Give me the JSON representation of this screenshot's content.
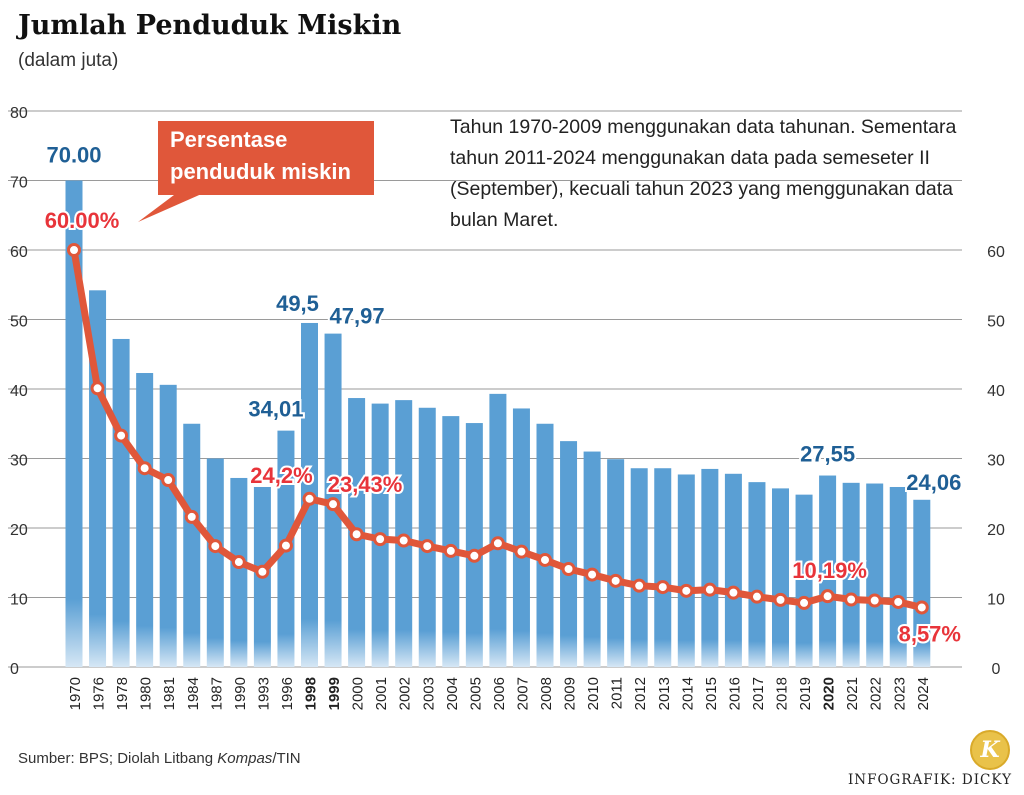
{
  "header": {
    "title": "Jumlah Penduduk Miskin",
    "subtitle": "(dalam juta)"
  },
  "note": "Tahun 1970-2009 menggunakan data tahunan. Sementara tahun 2011-2024 menggunakan data pada semeseter II (September), kecuali tahun 2023 yang menggunakan data bulan Maret.",
  "callout_label": [
    "Persentase",
    "penduduk miskin"
  ],
  "footer": {
    "source_prefix": "Sumber: BPS; Diolah Litbang ",
    "source_italic": "Kompas",
    "source_suffix": "/TIN",
    "credit": "INFOGRAFIK: DICKY",
    "logo_letter": "K"
  },
  "colors": {
    "bar": "#5a9fd4",
    "line": "#e0573a",
    "bar_label": "#1f5f95",
    "line_label": "#e8343a",
    "callout_bg": "#e0573a",
    "grid": "#9a9a9a"
  },
  "chart_data": {
    "type": "bar+line",
    "categories": [
      "1970",
      "1976",
      "1978",
      "1980",
      "1981",
      "1984",
      "1987",
      "1990",
      "1993",
      "1996",
      "1998",
      "1999",
      "2000",
      "2001",
      "2002",
      "2003",
      "2004",
      "2005",
      "2006",
      "2007",
      "2008",
      "2009",
      "2010",
      "2011",
      "2012",
      "2013",
      "2014",
      "2015",
      "2016",
      "2017",
      "2018",
      "2019",
      "2020",
      "2021",
      "2022",
      "2023",
      "2024"
    ],
    "bold_categories": [
      "1998",
      "1999",
      "2020"
    ],
    "series": [
      {
        "axis": "left",
        "type": "bar",
        "values": [
          70.0,
          54.2,
          47.2,
          42.3,
          40.6,
          35.0,
          30.0,
          27.2,
          25.9,
          34.01,
          49.5,
          47.97,
          38.7,
          37.9,
          38.4,
          37.3,
          36.1,
          35.1,
          39.3,
          37.2,
          35.0,
          32.5,
          31.0,
          29.9,
          28.6,
          28.6,
          27.7,
          28.5,
          27.8,
          26.6,
          25.7,
          24.8,
          27.55,
          26.5,
          26.4,
          25.9,
          24.06
        ],
        "labels": {
          "1970": "70.00",
          "1996": "34,01",
          "1998": "49,5",
          "1999": "47,97",
          "2020": "27,55",
          "2024": "24,06"
        }
      },
      {
        "name": "Persentase penduduk miskin",
        "axis": "right",
        "type": "line",
        "values": [
          60.0,
          40.1,
          33.3,
          28.6,
          26.9,
          21.6,
          17.4,
          15.1,
          13.7,
          17.47,
          24.2,
          23.43,
          19.1,
          18.4,
          18.2,
          17.4,
          16.7,
          16.0,
          17.8,
          16.6,
          15.4,
          14.1,
          13.3,
          12.4,
          11.7,
          11.5,
          10.96,
          11.13,
          10.7,
          10.12,
          9.66,
          9.22,
          10.19,
          9.71,
          9.57,
          9.36,
          8.57
        ],
        "labels": {
          "1970": "60.00%",
          "1998": "24,2%",
          "1999": "23,43%",
          "2020": "10,19%",
          "2024": "8,57%"
        }
      }
    ],
    "y_left": {
      "min": 0,
      "max": 80,
      "ticks": [
        0,
        10,
        20,
        30,
        40,
        50,
        60,
        70,
        80
      ]
    },
    "y_right": {
      "min": 0,
      "max": 80,
      "ticks": [
        0,
        10,
        20,
        30,
        40,
        50,
        60
      ]
    },
    "grid": true
  }
}
